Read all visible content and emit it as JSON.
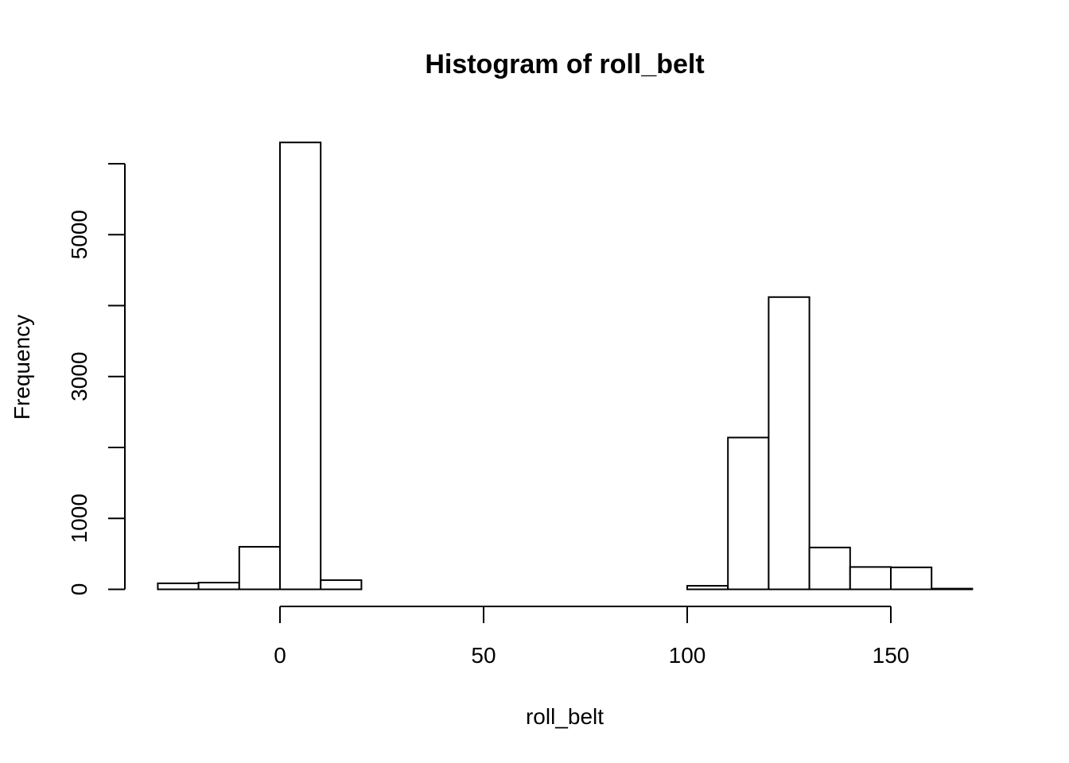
{
  "chart_data": {
    "type": "bar",
    "title": "Histogram of roll_belt",
    "xlabel": "roll_belt",
    "ylabel": "Frequency",
    "bin_width": 10,
    "bins": [
      {
        "start": -30,
        "end": -20,
        "count": 85
      },
      {
        "start": -20,
        "end": -10,
        "count": 95
      },
      {
        "start": -10,
        "end": 0,
        "count": 600
      },
      {
        "start": 0,
        "end": 10,
        "count": 6300
      },
      {
        "start": 10,
        "end": 20,
        "count": 130
      },
      {
        "start": 20,
        "end": 30,
        "count": 0
      },
      {
        "start": 30,
        "end": 40,
        "count": 0
      },
      {
        "start": 40,
        "end": 50,
        "count": 0
      },
      {
        "start": 50,
        "end": 60,
        "count": 0
      },
      {
        "start": 60,
        "end": 70,
        "count": 0
      },
      {
        "start": 70,
        "end": 80,
        "count": 0
      },
      {
        "start": 80,
        "end": 90,
        "count": 0
      },
      {
        "start": 90,
        "end": 100,
        "count": 0
      },
      {
        "start": 100,
        "end": 110,
        "count": 50
      },
      {
        "start": 110,
        "end": 120,
        "count": 2140
      },
      {
        "start": 120,
        "end": 130,
        "count": 4120
      },
      {
        "start": 130,
        "end": 140,
        "count": 590
      },
      {
        "start": 140,
        "end": 150,
        "count": 315
      },
      {
        "start": 150,
        "end": 160,
        "count": 310
      },
      {
        "start": 160,
        "end": 170,
        "count": 10
      }
    ],
    "x_axis": {
      "range": [
        -30,
        170
      ],
      "ticks": [
        0,
        50,
        100,
        150
      ],
      "tick_labels": [
        "0",
        "50",
        "100",
        "150"
      ]
    },
    "y_axis": {
      "range": [
        0,
        6000
      ],
      "ticks": [
        0,
        1000,
        2000,
        3000,
        4000,
        5000,
        6000
      ],
      "tick_labels": [
        "0",
        "1000",
        "",
        "3000",
        "",
        "5000",
        ""
      ]
    },
    "grid": false,
    "legend": "none"
  }
}
